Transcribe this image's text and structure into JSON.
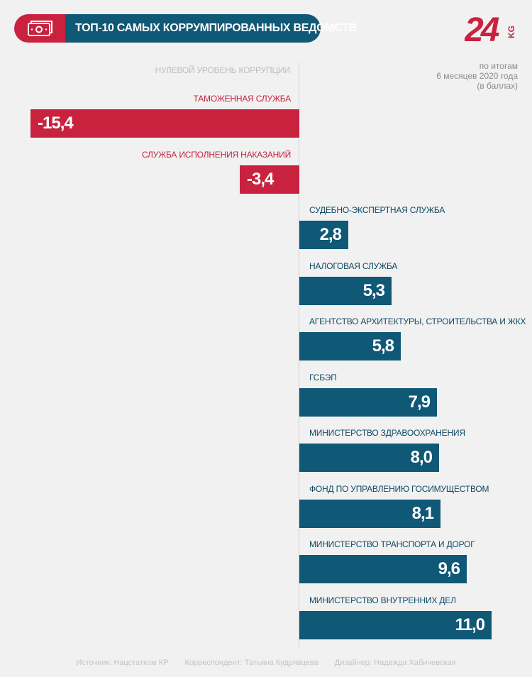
{
  "header": {
    "title": "ТОП-10 САМЫХ КОРРУМПИРОВАННЫХ ВЕДОМСТВ",
    "icon": "money-icon",
    "logo": {
      "number": "24",
      "suffix": "KG"
    }
  },
  "period": [
    "по итогам",
    "6 месяцев 2020 года",
    "(в баллах)"
  ],
  "zero_label": "НУЛЕВОЙ УРОВЕНЬ КОРРУПЦИИ",
  "colors": {
    "negative": "#c8223f",
    "positive": "#0f5876",
    "background": "#f1f1f1"
  },
  "chart_data": {
    "type": "bar",
    "orientation": "horizontal",
    "categories": [
      "ТАМОЖЕННАЯ СЛУЖБА",
      "СЛУЖБА ИСПОЛНЕНИЯ НАКАЗАНИЙ",
      "СУДЕБНО-ЭКСПЕРТНАЯ СЛУЖБА",
      "НАЛОГОВАЯ СЛУЖБА",
      "АГЕНТСТВО АРХИТЕКТУРЫ, СТРОИТЕЛЬСТВА И ЖКХ",
      "ГСБЭП",
      "МИНИСТЕРСТВО ЗДРАВООХРАНЕНИЯ",
      "ФОНД ПО УПРАВЛЕНИЮ ГОСИМУЩЕСТВОМ",
      "МИНИСТЕРСТВО ТРАНСПОРТА И ДОРОГ",
      "МИНИСТЕРСТВО ВНУТРЕННИХ ДЕЛ"
    ],
    "values": [
      -15.4,
      -3.4,
      2.8,
      5.3,
      5.8,
      7.9,
      8.0,
      8.1,
      9.6,
      11.0
    ],
    "value_labels": [
      "-15,4",
      "-3,4",
      "2,8",
      "5,3",
      "5,8",
      "7,9",
      "8,0",
      "8,1",
      "9,6",
      "11,0"
    ],
    "xlim": [
      -15.4,
      13.0
    ],
    "grid": false
  },
  "footer": {
    "source": "Источник: Нацстатком КР",
    "correspondent": "Корреспондент: Татьяна Кудрявцева",
    "designer": "Дизайнер: Надежда Хабичевская"
  }
}
